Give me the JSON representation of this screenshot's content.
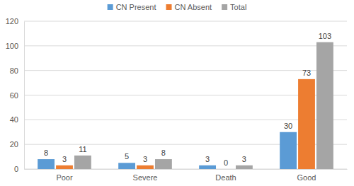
{
  "chart_data": {
    "type": "bar",
    "categories": [
      "Poor",
      "Severe",
      "Death",
      "Good"
    ],
    "series": [
      {
        "name": "CN Present",
        "color": "#5b9bd5",
        "values": [
          8,
          5,
          3,
          30
        ]
      },
      {
        "name": "CN Absent",
        "color": "#ed7d31",
        "values": [
          3,
          3,
          0,
          73
        ]
      },
      {
        "name": "Total",
        "color": "#a5a5a5",
        "values": [
          11,
          8,
          3,
          103
        ]
      }
    ],
    "ylim": [
      0,
      120
    ],
    "yticks": [
      0,
      20,
      40,
      60,
      80,
      100,
      120
    ],
    "grid": true,
    "legend": "top",
    "data_labels": true
  }
}
